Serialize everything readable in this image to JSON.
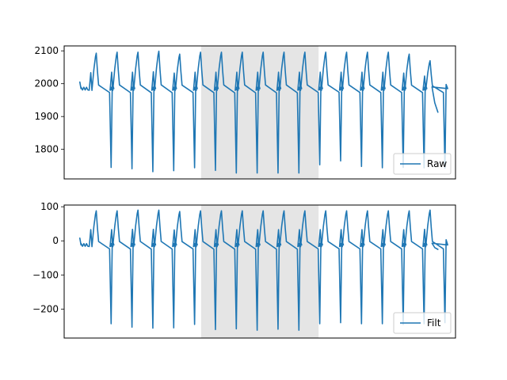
{
  "chart_data": [
    {
      "type": "line",
      "title": "",
      "xlabel": "",
      "ylabel": "",
      "x_ticks_visible": false,
      "ylim": [
        1710,
        2115
      ],
      "yticks": [
        1800,
        1900,
        2000,
        2100
      ],
      "ytick_labels": [
        "1800",
        "1900",
        "2000",
        "2100"
      ],
      "shaded_region": [
        0.35,
        0.65
      ],
      "legend": {
        "placement": "lower right",
        "entries": [
          "Raw"
        ]
      },
      "series": [
        {
          "name": "Raw",
          "color": "#1f77b4",
          "baseline": 1985,
          "end_value": 1913,
          "beats": [
            {
              "x": 0.0,
              "peak": 2093,
              "trough": 1745
            },
            {
              "x": 0.0,
              "peak": 2096,
              "trough": 1741
            },
            {
              "x": 0.0,
              "peak": 2096,
              "trough": 1732
            },
            {
              "x": 0.0,
              "peak": 2099,
              "trough": 1735
            },
            {
              "x": 0.0,
              "peak": 2090,
              "trough": 1744
            },
            {
              "x": 0.0,
              "peak": 2096,
              "trough": 1736
            },
            {
              "x": 0.0,
              "peak": 2096,
              "trough": 1728
            },
            {
              "x": 0.0,
              "peak": 2096,
              "trough": 1728
            },
            {
              "x": 0.0,
              "peak": 2096,
              "trough": 1728
            },
            {
              "x": 0.0,
              "peak": 2096,
              "trough": 1728
            },
            {
              "x": 0.0,
              "peak": 2096,
              "trough": 1753
            },
            {
              "x": 0.0,
              "peak": 2096,
              "trough": 1765
            },
            {
              "x": 0.0,
              "peak": 2096,
              "trough": 1748
            },
            {
              "x": 0.0,
              "peak": 2096,
              "trough": 1744
            },
            {
              "x": 0.0,
              "peak": 2096,
              "trough": 1745
            },
            {
              "x": 0.0,
              "peak": 2090,
              "trough": 1744
            },
            {
              "x": 0.0,
              "peak": 2070,
              "trough": 1743
            }
          ]
        }
      ]
    },
    {
      "type": "line",
      "title": "",
      "xlabel": "",
      "ylabel": "",
      "x_ticks_visible": false,
      "ylim": [
        -285,
        105
      ],
      "yticks": [
        -200,
        -100,
        0,
        100
      ],
      "ytick_labels": [
        "−200",
        "−100",
        "0",
        "100"
      ],
      "shaded_region": [
        0.35,
        0.65
      ],
      "legend": {
        "placement": "lower right",
        "entries": [
          "Filt"
        ]
      },
      "series": [
        {
          "name": "Filt",
          "color": "#1f77b4",
          "baseline": -12,
          "end_value": -25,
          "beats": [
            {
              "x": 0.0,
              "peak": 88,
              "trough": -243
            },
            {
              "x": 0.0,
              "peak": 88,
              "trough": -253
            },
            {
              "x": 0.0,
              "peak": 90,
              "trough": -256
            },
            {
              "x": 0.0,
              "peak": 90,
              "trough": -255
            },
            {
              "x": 0.0,
              "peak": 86,
              "trough": -245
            },
            {
              "x": 0.0,
              "peak": 88,
              "trough": -260
            },
            {
              "x": 0.0,
              "peak": 88,
              "trough": -258
            },
            {
              "x": 0.0,
              "peak": 88,
              "trough": -262
            },
            {
              "x": 0.0,
              "peak": 88,
              "trough": -259
            },
            {
              "x": 0.0,
              "peak": 88,
              "trough": -262
            },
            {
              "x": 0.0,
              "peak": 88,
              "trough": -243
            },
            {
              "x": 0.0,
              "peak": 88,
              "trough": -240
            },
            {
              "x": 0.0,
              "peak": 88,
              "trough": -243
            },
            {
              "x": 0.0,
              "peak": 88,
              "trough": -243
            },
            {
              "x": 0.0,
              "peak": 88,
              "trough": -245
            },
            {
              "x": 0.0,
              "peak": 88,
              "trough": -243
            },
            {
              "x": 0.0,
              "peak": 90,
              "trough": -240
            }
          ]
        }
      ]
    }
  ]
}
